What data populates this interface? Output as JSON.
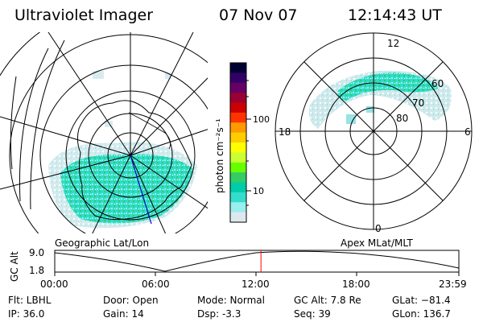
{
  "header": {
    "instrument": "Ultraviolet Imager",
    "date": "07 Nov 07",
    "time": "12:14:43 UT"
  },
  "colorbar": {
    "unit_label": "photon cm⁻²s⁻¹",
    "ticks": [
      "100",
      "10"
    ],
    "colors": [
      "#000033",
      "#330066",
      "#660066",
      "#990033",
      "#cc0000",
      "#ff3300",
      "#ff9900",
      "#ffcc00",
      "#ffff00",
      "#ccff33",
      "#66ff00",
      "#33cc66",
      "#00ccaa",
      "#33ddcc",
      "#99eeee",
      "#dde8ee"
    ]
  },
  "left_panel": {
    "caption": "Geographic Lat/Lon"
  },
  "right_panel": {
    "caption": "Apex MLat/MLT",
    "mlt_labels": {
      "top": "12",
      "left": "18",
      "right": "6",
      "bottom": "0"
    },
    "lat_labels": [
      "60",
      "70",
      "80"
    ]
  },
  "timeline": {
    "ylabel": "GC Alt",
    "ytick_top": "9.0",
    "ytick_bottom": "1.8",
    "xticks": [
      "00:00",
      "06:00",
      "12:00",
      "18:00",
      "23:59"
    ],
    "current_time_fraction": 0.5103,
    "marker_color": "#ff0000"
  },
  "info": {
    "flt": "Flt: LBHL",
    "ip": "IP: 36.0",
    "door": "Door: Open",
    "gain": "Gain: 14",
    "mode": "Mode: Normal",
    "dsp": "Dsp:    -3.3",
    "gcalt": "GC Alt: 7.8 Re",
    "seq": "Seq: 39",
    "glat": "GLat: −81.4",
    "glon": "GLon: 136.7"
  }
}
